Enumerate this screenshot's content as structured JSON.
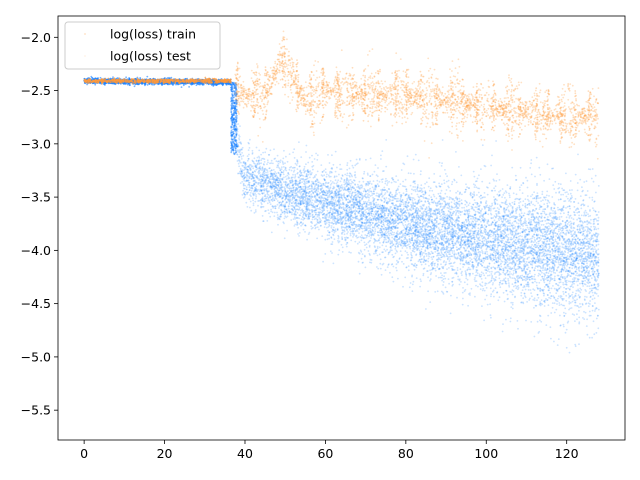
{
  "chart_data": {
    "type": "scatter",
    "title": "",
    "xlabel": "",
    "ylabel": "",
    "xlim": [
      -6.5,
      134.5
    ],
    "ylim": [
      -5.78,
      -1.8
    ],
    "x_ticks": [
      0,
      20,
      40,
      60,
      80,
      100,
      120
    ],
    "y_ticks": [
      -2.0,
      -2.5,
      -3.0,
      -3.5,
      -4.0,
      -4.5,
      -5.0,
      -5.5
    ],
    "x_tick_labels": [
      "0",
      "20",
      "40",
      "60",
      "80",
      "100",
      "120"
    ],
    "y_tick_labels": [
      "−2.0",
      "−2.5",
      "−3.0",
      "−3.5",
      "−4.0",
      "−4.5",
      "−5.0",
      "−5.5"
    ],
    "grid": false,
    "legend_position": "top-left",
    "series": [
      {
        "name": "log(loss) train",
        "color": "#1f77b4",
        "render_color": "#1a82ff",
        "description_points": [
          {
            "x": 0,
            "y": -2.41
          },
          {
            "x": 36.5,
            "y": -2.42
          },
          {
            "x": 38,
            "y": -3.0
          },
          {
            "x": 40,
            "y": -3.3
          },
          {
            "x": 50,
            "y": -3.45
          },
          {
            "x": 60,
            "y": -3.55
          },
          {
            "x": 70,
            "y": -3.65
          },
          {
            "x": 80,
            "y": -3.75
          },
          {
            "x": 90,
            "y": -3.83
          },
          {
            "x": 100,
            "y": -3.9
          },
          {
            "x": 110,
            "y": -3.97
          },
          {
            "x": 120,
            "y": -4.03
          },
          {
            "x": 128,
            "y": -4.07
          }
        ]
      },
      {
        "name": "log(loss) test",
        "color": "#ff7f0e",
        "render_color": "#ff9a3c",
        "description_points": [
          {
            "x": 0,
            "y": -2.41
          },
          {
            "x": 36.5,
            "y": -2.41
          },
          {
            "x": 40,
            "y": -2.55
          },
          {
            "x": 45,
            "y": -2.55
          },
          {
            "x": 49,
            "y": -2.2
          },
          {
            "x": 55,
            "y": -2.6
          },
          {
            "x": 60,
            "y": -2.5
          },
          {
            "x": 70,
            "y": -2.55
          },
          {
            "x": 80,
            "y": -2.55
          },
          {
            "x": 90,
            "y": -2.6
          },
          {
            "x": 100,
            "y": -2.65
          },
          {
            "x": 110,
            "y": -2.7
          },
          {
            "x": 120,
            "y": -2.75
          },
          {
            "x": 128,
            "y": -2.75
          }
        ]
      }
    ]
  }
}
